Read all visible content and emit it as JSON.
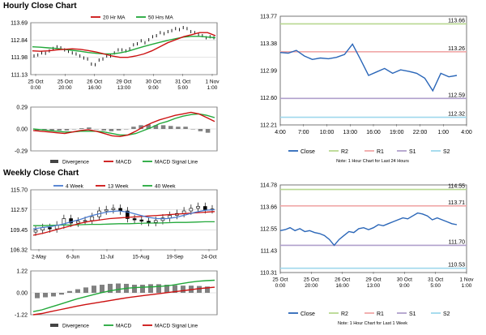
{
  "sections": {
    "hourly_title": "Hourly Close Chart",
    "weekly_title": "Weekly Close Chart"
  },
  "colors": {
    "price": "#000000",
    "ma_red": "#cc1111",
    "ma_green": "#22a83a",
    "ma_blue": "#4a7bd0",
    "close": "#2a66b8",
    "r2": "#b8d890",
    "r1": "#f0a8a8",
    "s1": "#b0a0cc",
    "s2": "#9fd8ec",
    "hist": "#808080",
    "grid": "#bdbdbd"
  },
  "chart_data": [
    {
      "id": "hourly_price",
      "type": "line",
      "title": "Hourly Close Chart",
      "legend": [
        "20 Hr MA",
        "50 Hrs MA"
      ],
      "x_ticks": [
        "25 Oct\n0:00",
        "25 Oct\n20:00",
        "26 Oct\n16:00",
        "29 Oct\n13:00",
        "30 Oct\n9:00",
        "31 Oct\n5:00",
        "1 Nov\n1:00"
      ],
      "y_ticks": [
        "113.69",
        "112.84",
        "111.98",
        "111.13"
      ],
      "ylim": [
        111.13,
        113.69
      ],
      "series": [
        {
          "name": "Price",
          "values": [
            112.05,
            112.1,
            112.2,
            112.18,
            112.3,
            112.42,
            112.5,
            112.45,
            112.35,
            112.28,
            112.2,
            112.15,
            112.05,
            111.95,
            111.9,
            111.65,
            111.62,
            111.85,
            111.9,
            112.05,
            112.05,
            112.2,
            112.35,
            112.35,
            112.3,
            112.4,
            112.6,
            112.65,
            112.8,
            112.7,
            112.85,
            113.0,
            113.05,
            113.2,
            113.15,
            113.25,
            113.3,
            113.4,
            113.35,
            113.45,
            113.4,
            113.25,
            113.2,
            113.1,
            113.05,
            112.95,
            113.0,
            112.95
          ]
        },
        {
          "name": "20 Hr MA",
          "values": [
            112.3,
            112.28,
            112.3,
            112.35,
            112.38,
            112.4,
            112.38,
            112.32,
            112.25,
            112.15,
            112.05,
            111.98,
            111.98,
            112.05,
            112.15,
            112.3,
            112.5,
            112.7,
            112.85,
            113.0,
            113.1,
            113.2,
            113.2,
            113.05
          ]
        },
        {
          "name": "50 Hrs MA",
          "values": [
            112.5,
            112.48,
            112.45,
            112.42,
            112.38,
            112.33,
            112.28,
            112.22,
            112.18,
            112.15,
            112.15,
            112.2,
            112.28,
            112.4,
            112.52,
            112.62,
            112.72,
            112.82,
            112.9,
            112.98,
            113.02,
            113.02,
            112.98,
            112.95
          ]
        }
      ]
    },
    {
      "id": "hourly_macd",
      "type": "line",
      "legend": [
        "Divergence",
        "MACD",
        "MACD Signal Line"
      ],
      "y_ticks": [
        "0.29",
        "0.00",
        "-0.29"
      ],
      "ylim": [
        -0.29,
        0.29
      ],
      "series": [
        {
          "name": "MACD",
          "values": [
            -0.02,
            -0.03,
            -0.04,
            -0.05,
            -0.06,
            -0.04,
            -0.02,
            -0.01,
            -0.03,
            -0.06,
            -0.09,
            -0.1,
            -0.08,
            -0.03,
            0.03,
            0.08,
            0.12,
            0.15,
            0.18,
            0.2,
            0.22,
            0.2,
            0.15,
            0.1
          ]
        },
        {
          "name": "MACD Signal Line",
          "values": [
            0.0,
            -0.01,
            -0.02,
            -0.03,
            -0.04,
            -0.04,
            -0.03,
            -0.03,
            -0.03,
            -0.04,
            -0.06,
            -0.08,
            -0.08,
            -0.06,
            -0.02,
            0.02,
            0.07,
            0.1,
            0.14,
            0.17,
            0.19,
            0.2,
            0.18,
            0.15
          ]
        },
        {
          "name": "Divergence",
          "values": [
            -0.02,
            -0.02,
            -0.02,
            -0.02,
            -0.02,
            0.0,
            0.01,
            0.02,
            0.0,
            -0.02,
            -0.03,
            -0.02,
            0.0,
            0.03,
            0.05,
            0.06,
            0.05,
            0.05,
            0.04,
            0.03,
            0.03,
            0.0,
            -0.03,
            -0.05
          ]
        }
      ]
    },
    {
      "id": "hourly_levels",
      "type": "line",
      "x_ticks": [
        "4:00",
        "7:00",
        "10:00",
        "13:00",
        "16:00",
        "19:00",
        "22:00",
        "1:00",
        "4:00"
      ],
      "y_ticks": [
        "113.77",
        "113.38",
        "112.99",
        "112.60",
        "112.21"
      ],
      "ylim": [
        112.21,
        113.77
      ],
      "levels": [
        {
          "name": "R2",
          "value": 113.66,
          "label": "113.66"
        },
        {
          "name": "R1",
          "value": 113.26,
          "label": "113.26"
        },
        {
          "name": "S1",
          "value": 112.59,
          "label": "112.59"
        },
        {
          "name": "S2",
          "value": 112.32,
          "label": "112.32"
        }
      ],
      "series": [
        {
          "name": "Close",
          "values": [
            113.25,
            113.24,
            113.28,
            113.2,
            113.15,
            113.17,
            113.16,
            113.18,
            113.22,
            113.37,
            113.15,
            112.92,
            112.97,
            113.02,
            112.95,
            113.0,
            112.98,
            112.95,
            112.88,
            112.7,
            112.95,
            112.9,
            112.92
          ]
        }
      ],
      "legend": [
        "Close",
        "R2",
        "R1",
        "S1",
        "S2"
      ],
      "note": "Note: 1 Hour Chart for Last 24 Hours"
    },
    {
      "id": "weekly_price",
      "type": "candlestick",
      "legend": [
        "4 Week",
        "13 Week",
        "40 Week"
      ],
      "x_ticks": [
        "2-May",
        "6-Jun",
        "11-Jul",
        "15-Aug",
        "19-Sep",
        "24-Oct"
      ],
      "y_ticks": [
        "115.70",
        "112.57",
        "109.45",
        "106.32"
      ],
      "ylim": [
        106.32,
        115.7
      ],
      "series": [
        {
          "name": "Close",
          "values": [
            109.4,
            109.8,
            109.6,
            110.2,
            111.2,
            110.5,
            110.8,
            110.9,
            111.5,
            112.4,
            112.6,
            112.8,
            112.4,
            111.2,
            111.0,
            110.8,
            110.6,
            110.9,
            111.3,
            111.7,
            112.0,
            112.4,
            112.8,
            113.1,
            112.6,
            112.7
          ]
        },
        {
          "name": "4 Week",
          "values": [
            109.6,
            109.8,
            110.0,
            110.3,
            110.7,
            111.1,
            111.6,
            112.0,
            112.3,
            112.4,
            112.2,
            111.8,
            111.4,
            111.2,
            111.2,
            111.4,
            111.8,
            112.2,
            112.5,
            112.6
          ]
        },
        {
          "name": "13 Week",
          "values": [
            108.6,
            108.9,
            109.3,
            109.7,
            110.1,
            110.5,
            110.8,
            111.0,
            111.2,
            111.3,
            111.4,
            111.5,
            111.6,
            111.7,
            111.8,
            111.9,
            112.0,
            112.1,
            112.2,
            112.3
          ]
        },
        {
          "name": "40 Week",
          "values": [
            110.1,
            110.1,
            110.15,
            110.2,
            110.2,
            110.25,
            110.3,
            110.3,
            110.35,
            110.4,
            110.4,
            110.45,
            110.5,
            110.5,
            110.55,
            110.6,
            110.6,
            110.65,
            110.7,
            110.7
          ]
        }
      ]
    },
    {
      "id": "weekly_macd",
      "type": "line",
      "legend": [
        "Divergence",
        "MACD",
        "MACD Signal Line"
      ],
      "y_ticks": [
        "1.22",
        "0.00",
        "-1.22"
      ],
      "ylim": [
        -1.22,
        1.22
      ],
      "series": [
        {
          "name": "MACD",
          "values": [
            -1.05,
            -0.95,
            -0.8,
            -0.65,
            -0.5,
            -0.35,
            -0.22,
            -0.1,
            0.02,
            0.12,
            0.2,
            0.26,
            0.3,
            0.32,
            0.34,
            0.37,
            0.42,
            0.5,
            0.58,
            0.64,
            0.68,
            0.7
          ]
        },
        {
          "name": "MACD Signal Line",
          "values": [
            -1.22,
            -1.15,
            -1.05,
            -0.95,
            -0.85,
            -0.75,
            -0.66,
            -0.58,
            -0.5,
            -0.42,
            -0.34,
            -0.26,
            -0.2,
            -0.14,
            -0.08,
            -0.02,
            0.04,
            0.1,
            0.16,
            0.22,
            0.27,
            0.31
          ]
        },
        {
          "name": "Divergence",
          "values": [
            -0.3,
            -0.25,
            -0.2,
            -0.1,
            0.1,
            0.2,
            0.3,
            0.4,
            0.45,
            0.5,
            0.52,
            0.5,
            0.45,
            0.45,
            0.48,
            0.48,
            0.45,
            0.42,
            0.4,
            0.4,
            0.38,
            0.35
          ]
        }
      ]
    },
    {
      "id": "weekly_levels",
      "type": "line",
      "x_ticks": [
        "25 Oct\n0:00",
        "25 Oct\n20:00",
        "26 Oct\n16:00",
        "29 Oct\n13:00",
        "30 Oct\n9:00",
        "31 Oct\n5:00",
        "1 Nov\n1:00"
      ],
      "y_ticks": [
        "114.78",
        "113.66",
        "112.55",
        "111.43",
        "110.31"
      ],
      "ylim": [
        110.31,
        114.78
      ],
      "levels": [
        {
          "name": "R2",
          "value": 114.55,
          "label": "114.55"
        },
        {
          "name": "R1",
          "value": 113.71,
          "label": "113.71"
        },
        {
          "name": "S1",
          "value": 111.7,
          "label": "111.70"
        },
        {
          "name": "S2",
          "value": 110.53,
          "label": "110.53"
        }
      ],
      "series": [
        {
          "name": "Close",
          "values": [
            112.45,
            112.5,
            112.6,
            112.45,
            112.55,
            112.4,
            112.45,
            112.35,
            112.3,
            112.2,
            112.0,
            111.7,
            112.0,
            112.2,
            112.4,
            112.35,
            112.55,
            112.6,
            112.5,
            112.6,
            112.75,
            112.7,
            112.8,
            112.9,
            113.0,
            113.1,
            113.05,
            113.2,
            113.35,
            113.3,
            113.2,
            113.0,
            113.1,
            113.0,
            112.9,
            112.8,
            112.75
          ]
        }
      ],
      "legend": [
        "Close",
        "R2",
        "R1",
        "S1",
        "S2"
      ],
      "note": "Note: 1 Hour Chart for Last 1 Week"
    }
  ]
}
